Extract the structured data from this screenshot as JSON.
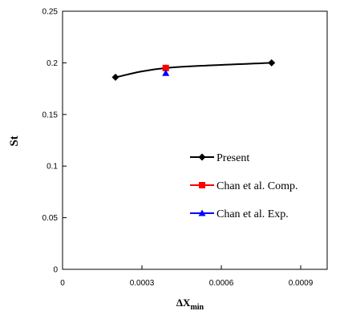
{
  "chart_data": {
    "type": "scatter",
    "xlabel": "ΔX",
    "xlabel_subscript": "min",
    "ylabel": "St",
    "xlim": [
      0,
      0.001
    ],
    "ylim": [
      0,
      0.25
    ],
    "x_ticks": [
      "0",
      "0.0003",
      "0.0006",
      "0.0009"
    ],
    "x_tick_values": [
      0,
      0.0003,
      0.0006,
      0.0009
    ],
    "y_ticks": [
      "0",
      "0.05",
      "0.1",
      "0.15",
      "0.2",
      "0.25"
    ],
    "y_tick_values": [
      0,
      0.05,
      0.1,
      0.15,
      0.2,
      0.25
    ],
    "grid": false,
    "legend_position": "center-right",
    "series": [
      {
        "name": "Present",
        "marker": "diamond",
        "line": true,
        "smooth": true,
        "color": "#000000",
        "x": [
          0.0002,
          0.00039,
          0.00079
        ],
        "y": [
          0.186,
          0.195,
          0.2
        ]
      },
      {
        "name": "Chan et al. Comp.",
        "marker": "square",
        "line": false,
        "color": "#ff0000",
        "x": [
          0.00039
        ],
        "y": [
          0.195
        ]
      },
      {
        "name": "Chan et al. Exp.",
        "marker": "triangle",
        "line": false,
        "color": "#0000ff",
        "x": [
          0.00039
        ],
        "y": [
          0.19
        ]
      }
    ]
  }
}
